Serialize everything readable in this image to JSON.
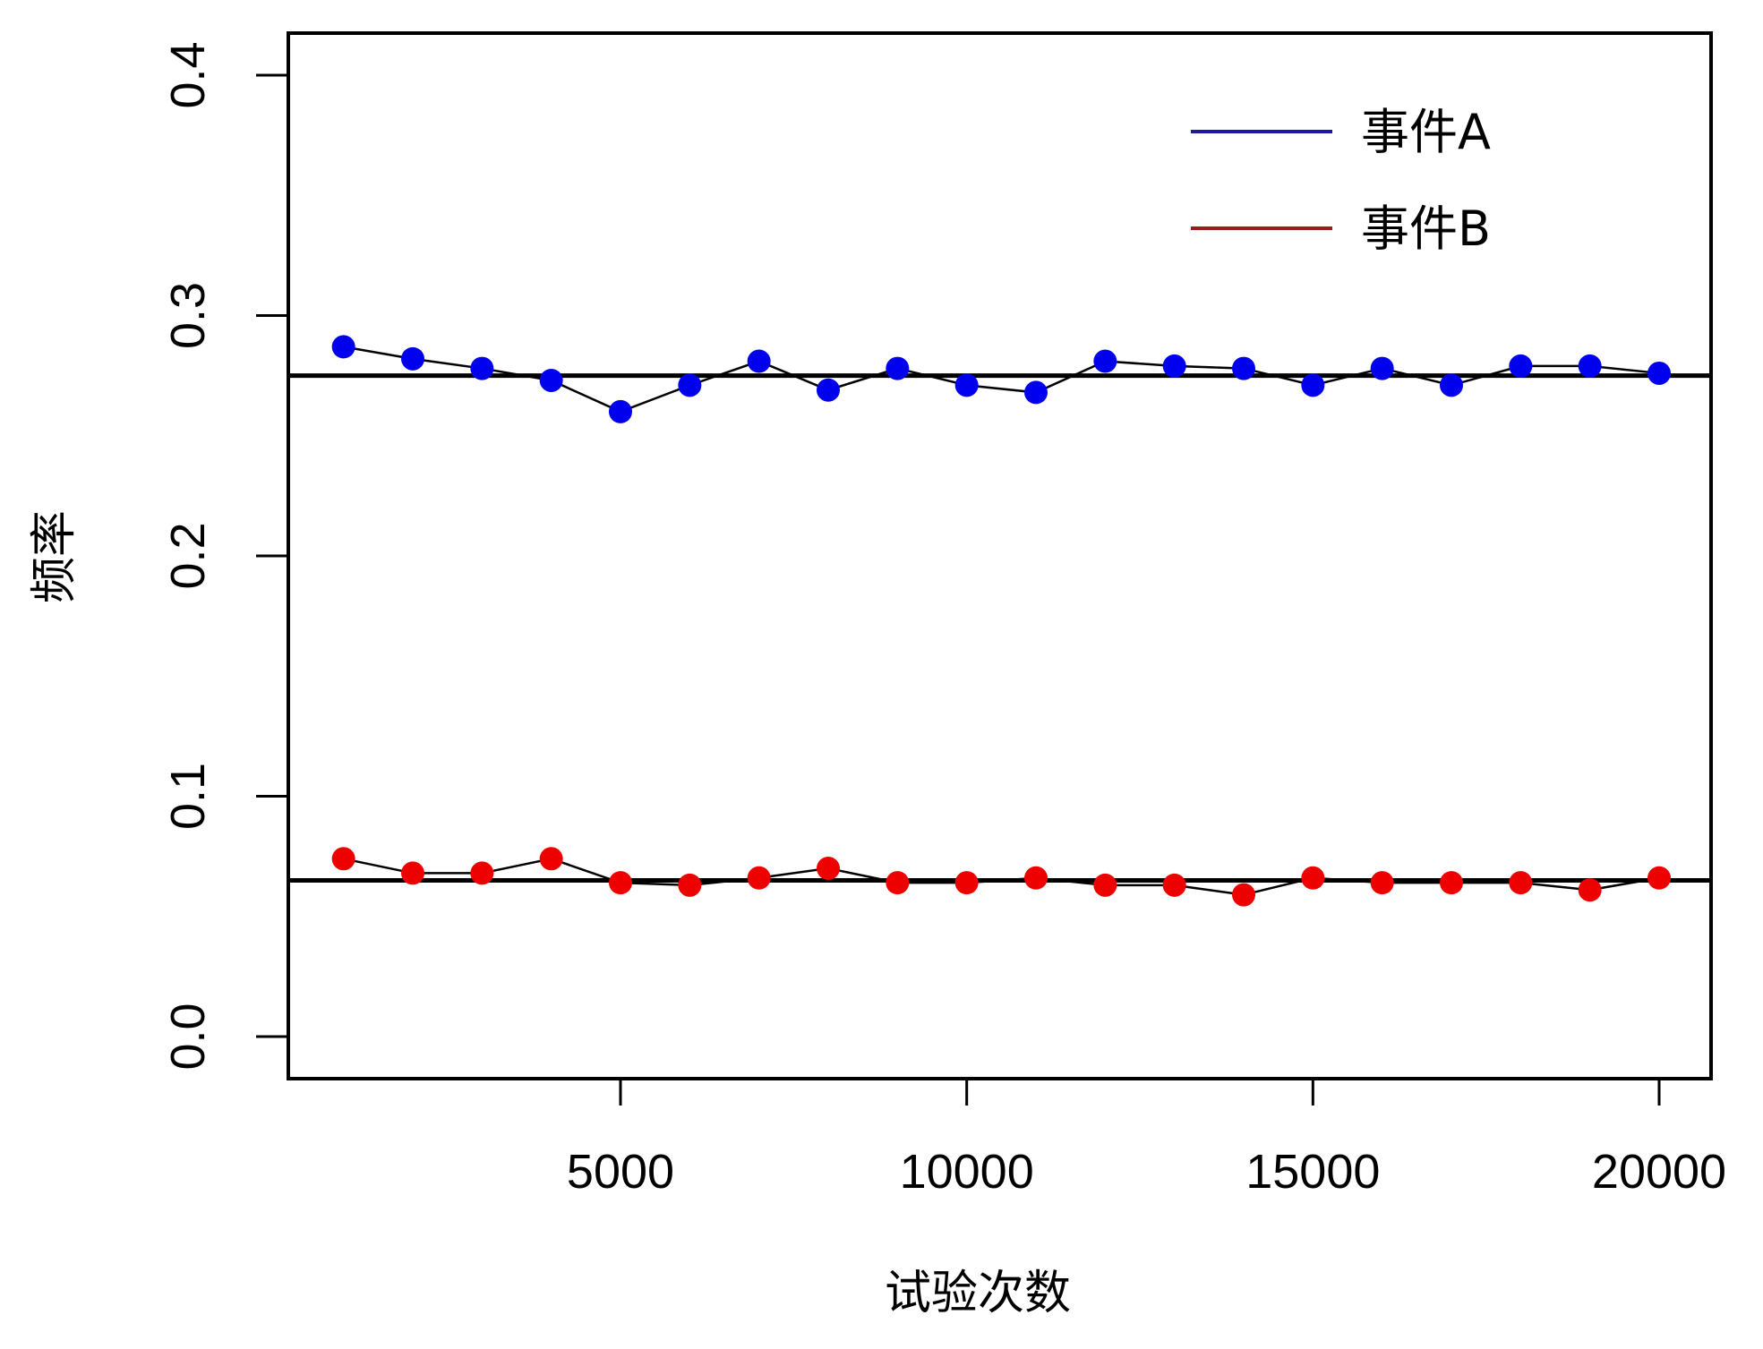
{
  "chart_data": {
    "type": "line",
    "title": "",
    "xlabel": "试验次数",
    "ylabel": "频率",
    "xlim": [
      0,
      21500
    ],
    "ylim": [
      0,
      0.4
    ],
    "x_ticks": [
      {
        "value": 5000,
        "label": "5000"
      },
      {
        "value": 10000,
        "label": "10000"
      },
      {
        "value": 15000,
        "label": "15000"
      },
      {
        "value": 20000,
        "label": "20000"
      }
    ],
    "y_ticks": [
      {
        "value": 0.0,
        "label": "0.0"
      },
      {
        "value": 0.1,
        "label": "0.1"
      },
      {
        "value": 0.2,
        "label": "0.2"
      },
      {
        "value": 0.3,
        "label": "0.3"
      },
      {
        "value": 0.4,
        "label": "0.4"
      }
    ],
    "grid": false,
    "legend_placement": "top-right",
    "x": [
      1000,
      2000,
      3000,
      4000,
      5000,
      6000,
      7000,
      8000,
      9000,
      10000,
      11000,
      12000,
      13000,
      14000,
      15000,
      16000,
      17000,
      18000,
      19000,
      20000
    ],
    "series": [
      {
        "name": "事件A",
        "color": "#0000ee",
        "legend_color": "#1a1a9a",
        "values": [
          0.287,
          0.282,
          0.278,
          0.273,
          0.26,
          0.271,
          0.281,
          0.269,
          0.278,
          0.271,
          0.268,
          0.281,
          0.279,
          0.278,
          0.271,
          0.278,
          0.271,
          0.279,
          0.279,
          0.276
        ],
        "reference_value": 0.275
      },
      {
        "name": "事件B",
        "color": "#ee0000",
        "legend_color": "#a01818",
        "values": [
          0.074,
          0.068,
          0.068,
          0.074,
          0.064,
          0.063,
          0.066,
          0.07,
          0.064,
          0.064,
          0.066,
          0.063,
          0.063,
          0.059,
          0.066,
          0.064,
          0.064,
          0.064,
          0.061,
          0.066
        ],
        "reference_value": 0.065
      }
    ]
  }
}
